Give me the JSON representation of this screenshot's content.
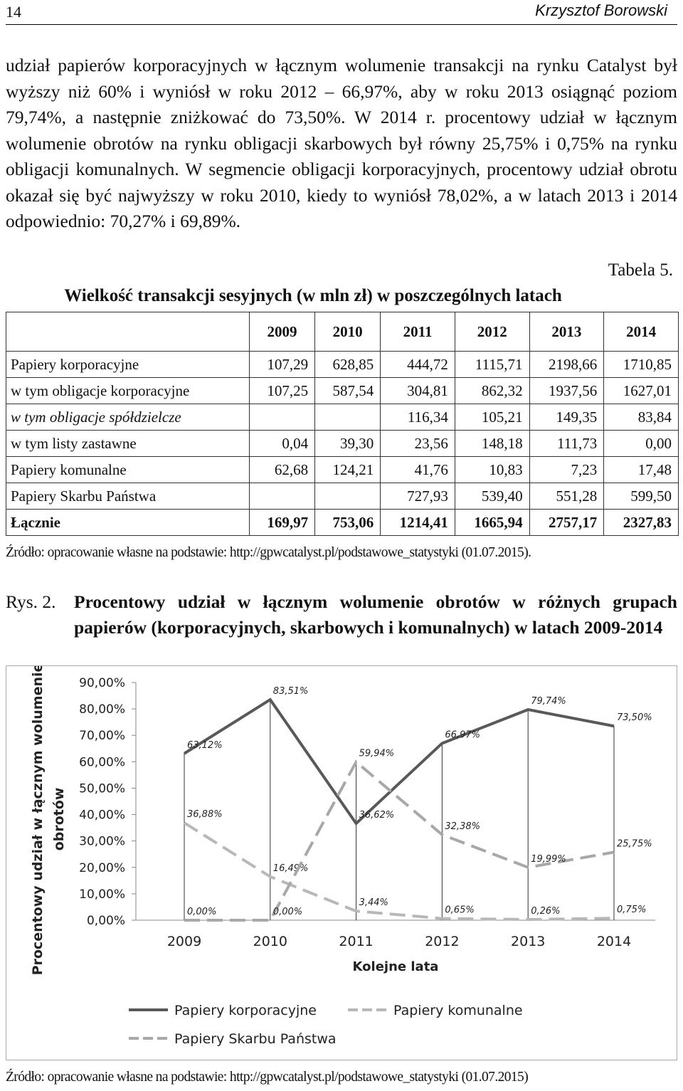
{
  "header": {
    "page": "14",
    "author": "Krzysztof Borowski"
  },
  "paragraph": "udział papierów korporacyjnych w łącznym wolumenie transakcji na rynku Catalyst był wyższy niż 60% i wyniósł w roku 2012 – 66,97%, aby w roku 2013 osiągnąć poziom 79,74%, a następnie zniżkować do 73,50%. W 2014 r. procentowy udział w łącznym wolumenie obrotów na rynku obligacji skarbowych był równy 25,75% i 0,75% na rynku obligacji komunalnych. W segmencie obligacji korporacyjnych, procentowy udział obrotu okazał się być najwyższy w roku 2010, kiedy to wyniósł 78,02%, a w latach 2013 i 2014 odpowiednio: 70,27% i 69,89%.",
  "table": {
    "label": "Tabela 5.",
    "title": "Wielkość transakcji sesyjnych (w mln zł) w poszczególnych latach",
    "columns": [
      "2009",
      "2010",
      "2011",
      "2012",
      "2013",
      "2014"
    ],
    "rows": [
      {
        "label": "Papiery korporacyjne",
        "cells": [
          "107,29",
          "628,85",
          "444,72",
          "1115,71",
          "2198,66",
          "1710,85"
        ]
      },
      {
        "label": "w tym obligacje korporacyjne",
        "cells": [
          "107,25",
          "587,54",
          "304,81",
          "862,32",
          "1937,56",
          "1627,01"
        ]
      },
      {
        "label": "w tym obligacje spółdzielcze",
        "cells": [
          null,
          null,
          "116,34",
          "105,21",
          "149,35",
          "83,84"
        ]
      },
      {
        "label": "w tym listy zastawne",
        "cells": [
          "0,04",
          "39,30",
          "23,56",
          "148,18",
          "111,73",
          "0,00"
        ]
      },
      {
        "label": "Papiery komunalne",
        "cells": [
          "62,68",
          "124,21",
          "41,76",
          "10,83",
          "7,23",
          "17,48"
        ]
      },
      {
        "label": "Papiery Skarbu Państwa",
        "cells": [
          null,
          null,
          "727,93",
          "539,40",
          "551,28",
          "599,50"
        ]
      },
      {
        "label": "Łącznie",
        "cells": [
          "169,97",
          "753,06",
          "1214,41",
          "1665,94",
          "2757,17",
          "2327,83"
        ]
      }
    ],
    "source": "Źródło: opracowanie własne na podstawie: http://gpwcatalyst.pl/podstawowe_statystyki (01.07.2015)."
  },
  "figure": {
    "label": "Rys. 2.",
    "title": "Procentowy udział w łącznym wolumenie obrotów w różnych grupach papierów (korporacyjnych, skarbowych i komunalnych) w latach 2009-2014",
    "chart": {
      "type": "line",
      "y_label_lines": [
        "Procentowy udział w łącznym wolumenie",
        "obrotów"
      ],
      "x_label": "Kolejne lata",
      "categories": [
        "2009",
        "2010",
        "2011",
        "2012",
        "2013",
        "2014"
      ],
      "ylim": [
        0,
        90
      ],
      "yticks": [
        {
          "value": 0,
          "label": "0,00%"
        },
        {
          "value": 10,
          "label": "10,00%"
        },
        {
          "value": 20,
          "label": "20,00%"
        },
        {
          "value": 30,
          "label": "30,00%"
        },
        {
          "value": 40,
          "label": "40,00%"
        },
        {
          "value": 50,
          "label": "50,00%"
        },
        {
          "value": 60,
          "label": "60,00%"
        },
        {
          "value": 70,
          "label": "70,00%"
        },
        {
          "value": 80,
          "label": "80,00%"
        },
        {
          "value": 90,
          "label": "90,00%"
        }
      ],
      "series": [
        {
          "name": "Papiery korporacyjne",
          "color": "#59595b",
          "dashed": false,
          "values": [
            63.12,
            83.51,
            36.62,
            66.97,
            79.74,
            73.5
          ],
          "value_labels": [
            "63,12%",
            "83,51%",
            "36,62%",
            "66,97%",
            "79,74%",
            "73,50%"
          ]
        },
        {
          "name": "Papiery komunalne",
          "color": "#b8b8b8",
          "dashed": true,
          "values": [
            36.88,
            16.49,
            3.44,
            0.65,
            0.26,
            0.75
          ],
          "value_labels": [
            "36,88%",
            "16,49%",
            "3,44%",
            "0,65%",
            "0,26%",
            "0,75%"
          ]
        },
        {
          "name": "Papiery Skarbu Państwa",
          "color": "#a8a8a8",
          "dashed": true,
          "values": [
            0.0,
            0.0,
            59.94,
            32.38,
            19.99,
            25.75
          ],
          "value_labels": [
            "0,00%",
            "0,00%",
            "59,94%",
            "32,38%",
            "19,99%",
            "25,75%"
          ]
        }
      ]
    },
    "source": "Źródło: opracowanie własne na podstawie: http://gpwcatalyst.pl/podstawowe_statystyki (01.07.2015)"
  }
}
